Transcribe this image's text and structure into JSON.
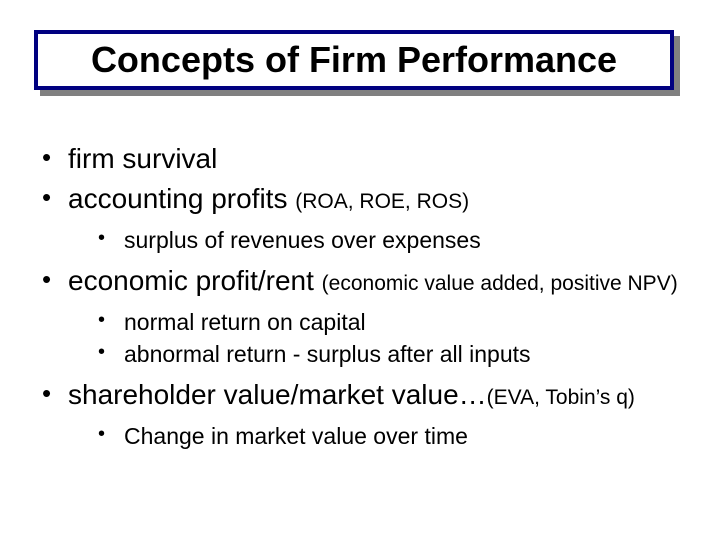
{
  "title": "Concepts of Firm Performance",
  "colors": {
    "title_border": "#000080",
    "shadow": "#808080",
    "background": "#ffffff",
    "text": "#000000"
  },
  "typography": {
    "title_fontsize": 36,
    "title_weight": "bold",
    "lvl1_fontsize": 28,
    "lvl2_fontsize": 23,
    "paren_fontsize": 21,
    "font_family": "Arial"
  },
  "bullets": [
    {
      "main": "firm survival",
      "paren": "",
      "sub": []
    },
    {
      "main": "accounting profits ",
      "paren": "(ROA, ROE, ROS)",
      "sub": [
        "surplus of revenues over expenses"
      ]
    },
    {
      "main": "economic profit/rent ",
      "paren": "(economic value added, positive NPV)",
      "sub": [
        "normal return on capital",
        "abnormal return - surplus after all inputs"
      ]
    },
    {
      "main": "shareholder value/market value…",
      "paren": "(EVA, Tobin’s q)",
      "sub": [
        "Change in market value over time"
      ]
    }
  ]
}
